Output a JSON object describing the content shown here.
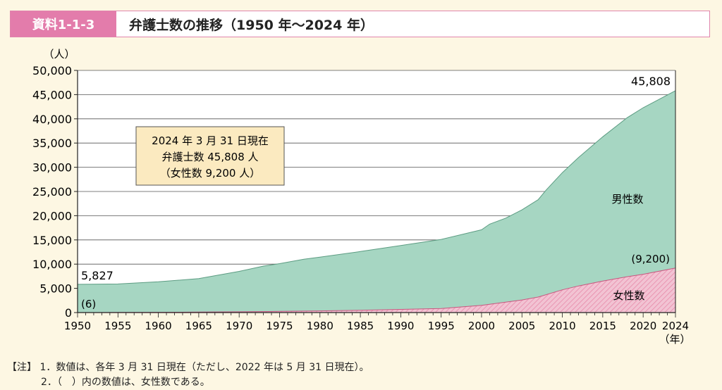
{
  "header": {
    "tag": "資料1-1-3",
    "title": "弁護士数の推移（1950 年～2024 年）"
  },
  "chart_data": {
    "type": "area",
    "title": "弁護士数の推移（1950 年～2024 年）",
    "y_unit_label": "（人）",
    "x_unit_label": "（年）",
    "ylim": [
      0,
      50000
    ],
    "xlim": [
      1950,
      2024
    ],
    "y_ticks": [
      "0",
      "5,000",
      "10,000",
      "15,000",
      "20,000",
      "25,000",
      "30,000",
      "35,000",
      "40,000",
      "45,000",
      "50,000"
    ],
    "x_ticks": [
      "1950",
      "1955",
      "1960",
      "1965",
      "1970",
      "1975",
      "1980",
      "1985",
      "1990",
      "1995",
      "2000",
      "2005",
      "2010",
      "2015",
      "2020",
      "2024"
    ],
    "grid": true,
    "series": [
      {
        "name": "男性数",
        "role": "total",
        "color": "#a6d6c2",
        "x": [
          1950,
          1955,
          1960,
          1965,
          1970,
          1973,
          1975,
          1978,
          1980,
          1985,
          1990,
          1995,
          2000,
          2001,
          2003,
          2005,
          2007,
          2008,
          2010,
          2012,
          2015,
          2018,
          2020,
          2024
        ],
        "values": [
          5827,
          5900,
          6350,
          7000,
          8500,
          9600,
          10100,
          11000,
          11450,
          12600,
          13850,
          15100,
          17100,
          18250,
          19500,
          21200,
          23300,
          25300,
          28900,
          32000,
          36300,
          40200,
          42300,
          45808
        ]
      },
      {
        "name": "女性数",
        "role": "female",
        "color": "#f2c3d3",
        "hatch": "#e78aa9",
        "x": [
          1950,
          1955,
          1960,
          1965,
          1970,
          1975,
          1980,
          1985,
          1990,
          1995,
          2000,
          2005,
          2007,
          2010,
          2012,
          2015,
          2018,
          2020,
          2024
        ],
        "values": [
          6,
          30,
          60,
          100,
          160,
          250,
          350,
          480,
          650,
          830,
          1500,
          2600,
          3200,
          4700,
          5500,
          6500,
          7400,
          7900,
          9200
        ]
      }
    ],
    "annotations": {
      "start_total": "5,827",
      "start_female": "(6)",
      "end_total": "45,808",
      "end_female": "(9,200)",
      "male_area_label": "男性数",
      "female_area_label": "女性数",
      "callout": [
        "2024 年 3 月 31 日現在",
        "弁護士数 45,808 人",
        "（女性数 9,200 人）"
      ]
    }
  },
  "notes": {
    "bracket": "【注】",
    "lines": [
      "1．数値は、各年 3 月 31 日現在（ただし、2022 年は 5 月 31 日現在）。",
      "2．（　）内の数値は、女性数である。"
    ]
  }
}
